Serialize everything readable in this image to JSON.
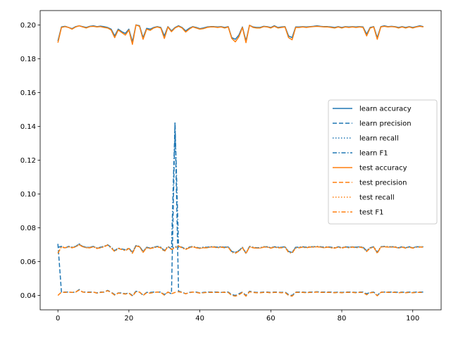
{
  "chart_data": {
    "type": "line",
    "title": "",
    "xlabel": "",
    "ylabel": "",
    "xlim": [
      -5,
      108
    ],
    "ylim": [
      0.0315,
      0.2085
    ],
    "grid": false,
    "legend_position": "center-right",
    "x_ticks": [
      0,
      20,
      40,
      60,
      80,
      100
    ],
    "x_tick_labels": [
      "0",
      "20",
      "40",
      "60",
      "80",
      "100"
    ],
    "y_ticks": [
      0.04,
      0.06,
      0.08,
      0.1,
      0.12,
      0.14,
      0.16,
      0.18,
      0.2
    ],
    "y_tick_labels": [
      "0.04",
      "0.06",
      "0.08",
      "0.10",
      "0.12",
      "0.14",
      "0.16",
      "0.18",
      "0.20"
    ],
    "x": [
      0,
      1,
      2,
      3,
      4,
      5,
      6,
      7,
      8,
      9,
      10,
      11,
      12,
      13,
      14,
      15,
      16,
      17,
      18,
      19,
      20,
      21,
      22,
      23,
      24,
      25,
      26,
      27,
      28,
      29,
      30,
      31,
      32,
      33,
      34,
      35,
      36,
      37,
      38,
      39,
      40,
      41,
      42,
      43,
      44,
      45,
      46,
      47,
      48,
      49,
      50,
      51,
      52,
      53,
      54,
      55,
      56,
      57,
      58,
      59,
      60,
      61,
      62,
      63,
      64,
      65,
      66,
      67,
      68,
      69,
      70,
      71,
      72,
      73,
      74,
      75,
      76,
      77,
      78,
      79,
      80,
      81,
      82,
      83,
      84,
      85,
      86,
      87,
      88,
      89,
      90,
      91,
      92,
      93,
      94,
      95,
      96,
      97,
      98,
      99,
      100,
      101,
      102,
      103
    ],
    "series": [
      {
        "name": "learn accuracy",
        "color": "#1f77b4",
        "dash": "solid",
        "values": [
          0.1905,
          0.1988,
          0.1992,
          0.1985,
          0.1978,
          0.199,
          0.1995,
          0.199,
          0.1985,
          0.1992,
          0.1995,
          0.199,
          0.1993,
          0.199,
          0.1985,
          0.1975,
          0.1935,
          0.1975,
          0.196,
          0.195,
          0.1975,
          0.19,
          0.2,
          0.1995,
          0.1925,
          0.198,
          0.1975,
          0.1985,
          0.199,
          0.1985,
          0.1935,
          0.199,
          0.1965,
          0.1985,
          0.1995,
          0.1985,
          0.1965,
          0.198,
          0.199,
          0.1985,
          0.1978,
          0.1982,
          0.1988,
          0.199,
          0.199,
          0.1988,
          0.199,
          0.1985,
          0.199,
          0.1925,
          0.1915,
          0.194,
          0.1988,
          0.1905,
          0.1998,
          0.1988,
          0.1985,
          0.1985,
          0.1992,
          0.199,
          0.1985,
          0.1995,
          0.1985,
          0.1988,
          0.199,
          0.1935,
          0.1925,
          0.1988,
          0.1988,
          0.199,
          0.1988,
          0.199,
          0.1992,
          0.1995,
          0.1992,
          0.199,
          0.199,
          0.1988,
          0.1985,
          0.199,
          0.1985,
          0.199,
          0.1988,
          0.199,
          0.1988,
          0.199,
          0.1988,
          0.1945,
          0.1985,
          0.199,
          0.1925,
          0.199,
          0.1995,
          0.199,
          0.1992,
          0.199,
          0.1985,
          0.199,
          0.1985,
          0.199,
          0.1985,
          0.199,
          0.1995,
          0.199
        ]
      },
      {
        "name": "learn precision",
        "color": "#1f77b4",
        "dash": "dashed",
        "values": [
          0.0705,
          0.042,
          0.042,
          0.042,
          0.0418,
          0.042,
          0.0435,
          0.042,
          0.042,
          0.042,
          0.042,
          0.0415,
          0.042,
          0.042,
          0.043,
          0.042,
          0.0405,
          0.0415,
          0.0415,
          0.041,
          0.0415,
          0.04,
          0.0425,
          0.042,
          0.0402,
          0.0418,
          0.0418,
          0.042,
          0.042,
          0.042,
          0.0405,
          0.042,
          0.041,
          0.142,
          0.0425,
          0.042,
          0.041,
          0.0418,
          0.042,
          0.042,
          0.0415,
          0.0418,
          0.042,
          0.042,
          0.042,
          0.042,
          0.0418,
          0.042,
          0.042,
          0.0405,
          0.04,
          0.041,
          0.042,
          0.04,
          0.0425,
          0.042,
          0.0418,
          0.0418,
          0.042,
          0.042,
          0.0418,
          0.042,
          0.042,
          0.0418,
          0.042,
          0.0405,
          0.04,
          0.042,
          0.042,
          0.042,
          0.0418,
          0.042,
          0.042,
          0.0422,
          0.042,
          0.042,
          0.042,
          0.042,
          0.0418,
          0.042,
          0.0418,
          0.042,
          0.042,
          0.042,
          0.0418,
          0.042,
          0.042,
          0.041,
          0.0418,
          0.042,
          0.04,
          0.042,
          0.042,
          0.042,
          0.042,
          0.042,
          0.0418,
          0.042,
          0.0418,
          0.042,
          0.0418,
          0.042,
          0.042,
          0.042
        ]
      },
      {
        "name": "learn recall",
        "color": "#1f77b4",
        "dash": "dotted",
        "values": [
          0.0685,
          0.069,
          0.068,
          0.069,
          0.0685,
          0.069,
          0.0705,
          0.069,
          0.0685,
          0.0685,
          0.069,
          0.068,
          0.0685,
          0.069,
          0.07,
          0.0685,
          0.0665,
          0.068,
          0.0675,
          0.067,
          0.068,
          0.0655,
          0.0695,
          0.069,
          0.066,
          0.0685,
          0.068,
          0.0685,
          0.069,
          0.0685,
          0.0665,
          0.069,
          0.0675,
          0.069,
          0.0685,
          0.0685,
          0.0675,
          0.0685,
          0.069,
          0.0685,
          0.068,
          0.0685,
          0.0685,
          0.0688,
          0.0688,
          0.0685,
          0.0688,
          0.0685,
          0.0688,
          0.066,
          0.0655,
          0.0665,
          0.0685,
          0.065,
          0.069,
          0.0685,
          0.0682,
          0.0682,
          0.0688,
          0.0688,
          0.0682,
          0.0688,
          0.0685,
          0.0685,
          0.0688,
          0.066,
          0.0655,
          0.0685,
          0.0685,
          0.0688,
          0.0685,
          0.0688,
          0.0688,
          0.069,
          0.0688,
          0.0685,
          0.0688,
          0.0685,
          0.0682,
          0.0688,
          0.0682,
          0.0688,
          0.0685,
          0.0688,
          0.0685,
          0.0688,
          0.0685,
          0.0665,
          0.0682,
          0.0688,
          0.0655,
          0.0688,
          0.069,
          0.0688,
          0.0688,
          0.0688,
          0.0682,
          0.0688,
          0.0682,
          0.0688,
          0.0682,
          0.0688,
          0.0688,
          0.0688
        ]
      },
      {
        "name": "learn F1",
        "color": "#1f77b4",
        "dash": "dashdot",
        "values": [
          0.0685,
          0.069,
          0.068,
          0.069,
          0.0685,
          0.069,
          0.0705,
          0.069,
          0.0685,
          0.0685,
          0.069,
          0.068,
          0.0685,
          0.069,
          0.07,
          0.0685,
          0.0665,
          0.068,
          0.0675,
          0.067,
          0.068,
          0.0655,
          0.0695,
          0.069,
          0.066,
          0.0685,
          0.068,
          0.0685,
          0.069,
          0.0685,
          0.0665,
          0.069,
          0.0675,
          0.142,
          0.069,
          0.0685,
          0.0675,
          0.0685,
          0.069,
          0.0685,
          0.068,
          0.0685,
          0.0685,
          0.0688,
          0.0688,
          0.0685,
          0.0688,
          0.0685,
          0.0688,
          0.066,
          0.0655,
          0.0665,
          0.0685,
          0.065,
          0.069,
          0.0685,
          0.0682,
          0.0682,
          0.0688,
          0.0688,
          0.0682,
          0.0688,
          0.0685,
          0.0685,
          0.0688,
          0.066,
          0.0655,
          0.0685,
          0.0685,
          0.0688,
          0.0685,
          0.0688,
          0.0688,
          0.069,
          0.0688,
          0.0685,
          0.0688,
          0.0685,
          0.0682,
          0.0688,
          0.0682,
          0.0688,
          0.0685,
          0.0688,
          0.0685,
          0.0688,
          0.0685,
          0.0665,
          0.0682,
          0.0688,
          0.0655,
          0.0688,
          0.069,
          0.0688,
          0.0688,
          0.0688,
          0.0682,
          0.0688,
          0.0682,
          0.0688,
          0.0682,
          0.0688,
          0.0688,
          0.0688
        ]
      },
      {
        "name": "test accuracy",
        "color": "#ff7f0e",
        "dash": "solid",
        "values": [
          0.1895,
          0.1985,
          0.199,
          0.1985,
          0.1975,
          0.1988,
          0.1995,
          0.1988,
          0.1982,
          0.199,
          0.1992,
          0.1988,
          0.199,
          0.1985,
          0.1982,
          0.197,
          0.1925,
          0.197,
          0.1955,
          0.194,
          0.197,
          0.1885,
          0.2,
          0.1992,
          0.1915,
          0.1975,
          0.1968,
          0.1982,
          0.1988,
          0.1982,
          0.192,
          0.1988,
          0.196,
          0.1982,
          0.1992,
          0.1982,
          0.1958,
          0.1975,
          0.1988,
          0.1982,
          0.1975,
          0.1978,
          0.1985,
          0.1988,
          0.1988,
          0.1985,
          0.1988,
          0.1982,
          0.1988,
          0.192,
          0.19,
          0.193,
          0.1985,
          0.1895,
          0.1998,
          0.1985,
          0.1982,
          0.1982,
          0.199,
          0.1988,
          0.1982,
          0.1992,
          0.1982,
          0.1985,
          0.1988,
          0.1925,
          0.1912,
          0.1985,
          0.1985,
          0.1988,
          0.1985,
          0.1988,
          0.199,
          0.1992,
          0.199,
          0.1988,
          0.1988,
          0.1985,
          0.1982,
          0.1988,
          0.1982,
          0.1988,
          0.1985,
          0.1988,
          0.1985,
          0.1988,
          0.1985,
          0.1935,
          0.1982,
          0.1988,
          0.1915,
          0.1988,
          0.1992,
          0.1988,
          0.199,
          0.1988,
          0.1982,
          0.1988,
          0.1982,
          0.1988,
          0.1982,
          0.1988,
          0.1992,
          0.1988
        ]
      },
      {
        "name": "test precision",
        "color": "#ff7f0e",
        "dash": "dashed",
        "values": [
          0.04,
          0.042,
          0.0418,
          0.042,
          0.0418,
          0.042,
          0.0432,
          0.042,
          0.0418,
          0.0418,
          0.042,
          0.0414,
          0.0418,
          0.042,
          0.0428,
          0.0418,
          0.0402,
          0.0414,
          0.0412,
          0.0408,
          0.0414,
          0.0396,
          0.0422,
          0.042,
          0.04,
          0.0416,
          0.0414,
          0.0418,
          0.042,
          0.0418,
          0.0402,
          0.042,
          0.041,
          0.0418,
          0.0422,
          0.0418,
          0.041,
          0.0416,
          0.042,
          0.0418,
          0.0414,
          0.0416,
          0.0418,
          0.0418,
          0.0418,
          0.0418,
          0.0418,
          0.0418,
          0.0418,
          0.04,
          0.0396,
          0.0404,
          0.0418,
          0.0396,
          0.0422,
          0.0418,
          0.0416,
          0.0416,
          0.0418,
          0.0418,
          0.0416,
          0.0418,
          0.0418,
          0.0416,
          0.0418,
          0.04,
          0.0396,
          0.0418,
          0.0418,
          0.0418,
          0.0416,
          0.0418,
          0.0418,
          0.042,
          0.0418,
          0.0418,
          0.0418,
          0.0418,
          0.0416,
          0.0418,
          0.0416,
          0.0418,
          0.0418,
          0.0418,
          0.0416,
          0.0418,
          0.0418,
          0.0404,
          0.0416,
          0.0418,
          0.0398,
          0.0418,
          0.042,
          0.0418,
          0.0418,
          0.0418,
          0.0416,
          0.0418,
          0.0416,
          0.0418,
          0.0416,
          0.0418,
          0.0418,
          0.0418
        ]
      },
      {
        "name": "test recall",
        "color": "#ff7f0e",
        "dash": "dotted",
        "values": [
          0.065,
          0.0688,
          0.0682,
          0.0688,
          0.0682,
          0.0688,
          0.07,
          0.0688,
          0.0682,
          0.0682,
          0.0688,
          0.0678,
          0.0682,
          0.0688,
          0.0698,
          0.0682,
          0.066,
          0.0678,
          0.0672,
          0.0665,
          0.0678,
          0.065,
          0.0692,
          0.0688,
          0.0655,
          0.0682,
          0.0678,
          0.0682,
          0.0688,
          0.0682,
          0.066,
          0.0688,
          0.0672,
          0.0682,
          0.0692,
          0.0682,
          0.0672,
          0.0682,
          0.0688,
          0.0682,
          0.0678,
          0.0682,
          0.0682,
          0.0686,
          0.0686,
          0.0682,
          0.0686,
          0.0682,
          0.0686,
          0.0655,
          0.065,
          0.0662,
          0.0682,
          0.0648,
          0.0688,
          0.0682,
          0.068,
          0.068,
          0.0686,
          0.0686,
          0.068,
          0.0686,
          0.0682,
          0.0682,
          0.0686,
          0.0655,
          0.065,
          0.0682,
          0.0682,
          0.0686,
          0.0682,
          0.0686,
          0.0686,
          0.0688,
          0.0686,
          0.0682,
          0.0686,
          0.0682,
          0.068,
          0.0686,
          0.068,
          0.0686,
          0.0682,
          0.0686,
          0.0682,
          0.0686,
          0.0682,
          0.066,
          0.068,
          0.0686,
          0.065,
          0.0686,
          0.0688,
          0.0686,
          0.0686,
          0.0686,
          0.068,
          0.0686,
          0.068,
          0.0686,
          0.068,
          0.0686,
          0.0686,
          0.0686
        ]
      },
      {
        "name": "test F1",
        "color": "#ff7f0e",
        "dash": "dashdot",
        "values": [
          0.065,
          0.0688,
          0.0682,
          0.0688,
          0.0682,
          0.0688,
          0.07,
          0.0688,
          0.0682,
          0.0682,
          0.0688,
          0.0678,
          0.0682,
          0.0688,
          0.0698,
          0.0682,
          0.066,
          0.0678,
          0.0672,
          0.0665,
          0.0678,
          0.065,
          0.0692,
          0.0688,
          0.0655,
          0.0682,
          0.0678,
          0.0682,
          0.0688,
          0.0682,
          0.066,
          0.0688,
          0.0672,
          0.0682,
          0.0692,
          0.0682,
          0.0672,
          0.0682,
          0.0688,
          0.0682,
          0.0678,
          0.0682,
          0.0682,
          0.0686,
          0.0686,
          0.0682,
          0.0686,
          0.0682,
          0.0686,
          0.0655,
          0.065,
          0.0662,
          0.0682,
          0.0648,
          0.0688,
          0.0682,
          0.068,
          0.068,
          0.0686,
          0.0686,
          0.068,
          0.0686,
          0.0682,
          0.0682,
          0.0686,
          0.0655,
          0.065,
          0.0682,
          0.0682,
          0.0686,
          0.0682,
          0.0686,
          0.0686,
          0.0688,
          0.0686,
          0.0682,
          0.0686,
          0.0682,
          0.068,
          0.0686,
          0.068,
          0.0686,
          0.0682,
          0.0686,
          0.0682,
          0.0686,
          0.0682,
          0.066,
          0.068,
          0.0686,
          0.065,
          0.0686,
          0.0688,
          0.0686,
          0.0686,
          0.0686,
          0.068,
          0.0686,
          0.068,
          0.0686,
          0.068,
          0.0686,
          0.0686,
          0.0686
        ]
      }
    ]
  }
}
